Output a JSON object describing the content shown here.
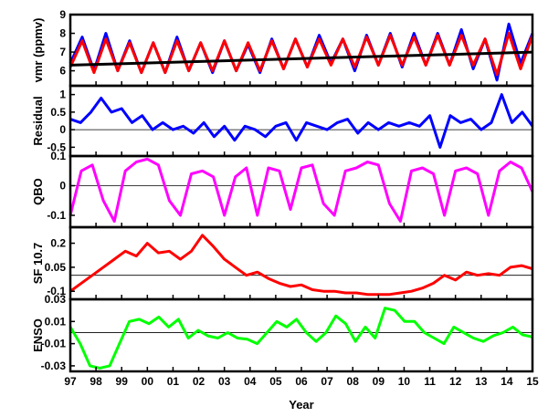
{
  "chart_data": {
    "type": "line",
    "xlabel": "Year",
    "x_ticks": [
      "97",
      "98",
      "99",
      "00",
      "01",
      "02",
      "03",
      "04",
      "05",
      "06",
      "07",
      "08",
      "09",
      "10",
      "11",
      "12",
      "13",
      "14",
      "15"
    ],
    "xlim": [
      1997,
      2015
    ],
    "panels": [
      {
        "name": "vmr",
        "ylabel": "vmr (ppmv)",
        "ylim": [
          5.2,
          9
        ],
        "y_ticks": [
          6,
          7,
          8,
          9
        ],
        "zero_line": null,
        "series": [
          {
            "id": "observed",
            "color": "#0000ff",
            "values": [
              6.4,
              7.8,
              6.0,
              8.0,
              6.0,
              7.6,
              5.9,
              7.5,
              5.9,
              7.8,
              6.0,
              7.5,
              5.9,
              7.6,
              6.0,
              7.4,
              5.9,
              7.7,
              6.1,
              7.7,
              6.2,
              7.9,
              6.4,
              7.7,
              6.0,
              7.9,
              6.3,
              8.0,
              6.2,
              8.0,
              6.3,
              8.0,
              6.3,
              8.2,
              6.1,
              7.7,
              5.5,
              8.5,
              6.4,
              8.0
            ]
          },
          {
            "id": "model",
            "color": "#ff0000",
            "values": [
              6.2,
              7.6,
              5.9,
              7.7,
              6.0,
              7.5,
              5.9,
              7.5,
              5.9,
              7.6,
              6.0,
              7.5,
              6.0,
              7.6,
              6.0,
              7.5,
              6.0,
              7.6,
              6.1,
              7.7,
              6.2,
              7.7,
              6.3,
              7.7,
              6.2,
              7.8,
              6.3,
              7.9,
              6.3,
              7.8,
              6.3,
              7.9,
              6.3,
              7.9,
              6.3,
              7.7,
              5.8,
              8.0,
              6.1,
              7.9
            ]
          },
          {
            "id": "trend",
            "color": "#000000",
            "values": [
              6.3,
              7.0
            ]
          }
        ]
      },
      {
        "name": "residual",
        "ylabel": "Residual",
        "ylim": [
          -0.75,
          1.25
        ],
        "y_ticks": [
          -0.5,
          0,
          0.5,
          1
        ],
        "zero_line": 0,
        "series": [
          {
            "id": "residual",
            "color": "#0000ff",
            "values": [
              0.3,
              0.2,
              0.5,
              0.9,
              0.5,
              0.6,
              0.2,
              0.4,
              0.0,
              0.2,
              0.0,
              0.1,
              -0.1,
              0.2,
              -0.2,
              0.1,
              -0.3,
              0.1,
              0.0,
              -0.2,
              0.1,
              0.2,
              -0.3,
              0.2,
              0.1,
              0.0,
              0.2,
              0.3,
              -0.1,
              0.2,
              0.0,
              0.2,
              0.1,
              0.2,
              0.1,
              0.4,
              -0.5,
              0.4,
              0.2,
              0.3,
              0.0,
              0.2,
              1.0,
              0.2,
              0.5,
              0.1
            ]
          }
        ]
      },
      {
        "name": "qbo",
        "ylabel": "QBO",
        "ylim": [
          -0.14,
          0.1
        ],
        "y_ticks": [
          -0.1,
          0,
          0.1
        ],
        "zero_line": 0,
        "series": [
          {
            "id": "qbo",
            "color": "#ff00ff",
            "values": [
              -0.1,
              0.05,
              0.07,
              -0.05,
              -0.12,
              0.05,
              0.08,
              0.09,
              0.07,
              -0.05,
              -0.1,
              0.04,
              0.05,
              0.03,
              -0.1,
              0.03,
              0.06,
              -0.1,
              0.06,
              0.05,
              -0.08,
              0.06,
              0.07,
              -0.06,
              -0.1,
              0.05,
              0.06,
              0.08,
              0.07,
              -0.06,
              -0.12,
              0.05,
              0.06,
              0.04,
              -0.1,
              0.05,
              0.06,
              0.04,
              -0.1,
              0.05,
              0.08,
              0.06,
              -0.02
            ]
          }
        ]
      },
      {
        "name": "sf107",
        "ylabel": "SF 10.7",
        "ylim": [
          -0.15,
          0.3
        ],
        "y_ticks": [
          -0.1,
          0.05,
          0.2
        ],
        "zero_line": 0.0,
        "series": [
          {
            "id": "sf107",
            "color": "#ff0000",
            "values": [
              -0.1,
              -0.05,
              0.0,
              0.05,
              0.1,
              0.15,
              0.12,
              0.2,
              0.14,
              0.15,
              0.1,
              0.15,
              0.25,
              0.18,
              0.1,
              0.05,
              0.0,
              0.02,
              -0.02,
              -0.05,
              -0.07,
              -0.06,
              -0.09,
              -0.1,
              -0.1,
              -0.11,
              -0.11,
              -0.12,
              -0.12,
              -0.12,
              -0.11,
              -0.1,
              -0.08,
              -0.05,
              0.0,
              -0.03,
              0.02,
              0.0,
              0.01,
              0.0,
              0.05,
              0.06,
              0.04
            ]
          }
        ]
      },
      {
        "name": "enso",
        "ylabel": "ENSO",
        "ylim": [
          -0.035,
          0.03
        ],
        "y_ticks": [
          -0.03,
          -0.01,
          0.01,
          0.03
        ],
        "zero_line": 0,
        "series": [
          {
            "id": "enso",
            "color": "#00ff00",
            "values": [
              0.005,
              -0.01,
              -0.03,
              -0.032,
              -0.03,
              -0.01,
              0.01,
              0.012,
              0.008,
              0.014,
              0.005,
              0.012,
              -0.005,
              0.002,
              -0.003,
              -0.005,
              0.0,
              -0.005,
              -0.006,
              -0.01,
              0.0,
              0.01,
              0.005,
              0.012,
              0.0,
              -0.008,
              0.0,
              0.015,
              0.008,
              -0.008,
              0.005,
              -0.005,
              0.022,
              0.02,
              0.01,
              0.01,
              0.0,
              -0.005,
              -0.01,
              0.005,
              0.0,
              -0.005,
              -0.008,
              -0.003,
              0.0,
              0.005,
              -0.002,
              -0.004
            ]
          }
        ]
      }
    ]
  }
}
